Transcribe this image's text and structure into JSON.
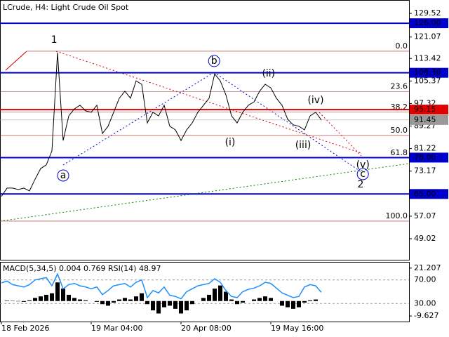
{
  "chart_data": [
    {
      "type": "line",
      "title": "LCrude, H4:  Light Crude Oil Spot",
      "categories": [
        "18 Feb 2026",
        null,
        null,
        null,
        null,
        null,
        null,
        null,
        null,
        null,
        null,
        null,
        null,
        null,
        null,
        null,
        "19 Mar 04:00",
        null,
        null,
        null,
        null,
        null,
        null,
        null,
        null,
        null,
        null,
        null,
        null,
        null,
        null,
        null,
        "20 Apr 08:00",
        null,
        null,
        null,
        null,
        null,
        null,
        null,
        null,
        null,
        null,
        null,
        null,
        null,
        null,
        null,
        "19 May 16:00",
        null,
        null,
        null,
        null,
        null,
        null,
        null,
        null,
        null
      ],
      "values": [
        64.1,
        67.1,
        67.1,
        66.6,
        67.1,
        66.1,
        70.3,
        74.1,
        75.4,
        80.4,
        115.5,
        84.1,
        92.9,
        95.4,
        96.7,
        94.7,
        94.2,
        96.7,
        86.6,
        89.2,
        94.2,
        99.2,
        101.7,
        99.2,
        105.4,
        104.2,
        90.4,
        94.2,
        92.9,
        96.7,
        89.2,
        87.9,
        84.1,
        87.9,
        90.4,
        94.2,
        96.7,
        99.2,
        107.9,
        105.4,
        100.4,
        92.9,
        90.4,
        94.2,
        96.7,
        97.9,
        101.7,
        104.2,
        102.9,
        99.2,
        96.7,
        91.7,
        89.7,
        89.2,
        87.9,
        92.9,
        94.2,
        91.45
      ],
      "color": "#000000",
      "ylim": [
        41.5,
        134.3
      ],
      "yticks": [
        129.52,
        121.07,
        113.42,
        105.37,
        97.32,
        89.27,
        81.22,
        73.17,
        57.07,
        49.02
      ],
      "levels": [
        {
          "value": 126,
          "label": "126.00",
          "color": "#0000cc"
        },
        {
          "value": 108.3,
          "label": "108.30",
          "color": "#0000cc"
        },
        {
          "value": 95.15,
          "label": "95.15",
          "color": "#e00000"
        },
        {
          "value": 78,
          "label": "78.00",
          "color": "#0000cc"
        },
        {
          "value": 65,
          "label": "65.00",
          "color": "#0000cc"
        }
      ],
      "last_price": 91.45,
      "fib_levels": [
        {
          "value": 116,
          "label": "0.0"
        },
        {
          "value": 101.6,
          "label": "23.6"
        },
        {
          "value": 94.2,
          "label": "38.2"
        },
        {
          "value": 85.9,
          "label": "50.0"
        },
        {
          "value": 77.9,
          "label": "61.8"
        },
        {
          "value": 55.3,
          "label": "100.0"
        }
      ],
      "annotations": [
        {
          "text": "1",
          "x": 9.4,
          "y": 120,
          "color": "#a52a2a",
          "circle": false
        },
        {
          "text": "a",
          "x": 11,
          "y": 71.6,
          "color": "#0000cc",
          "circle": true
        },
        {
          "text": "b",
          "x": 37.9,
          "y": 112.5,
          "color": "#0000cc",
          "circle": true
        },
        {
          "text": "(i)",
          "x": 40.75,
          "y": 83.4,
          "color": "#cc0000",
          "circle": false
        },
        {
          "text": "(ii)",
          "x": 47.6,
          "y": 108,
          "color": "#cc0000",
          "circle": false
        },
        {
          "text": "(iii)",
          "x": 53.75,
          "y": 82.4,
          "color": "#cc0000",
          "circle": false
        },
        {
          "text": "(iv)",
          "x": 56,
          "y": 98.4,
          "color": "#cc0000",
          "circle": false
        },
        {
          "text": "(v)",
          "x": 64.4,
          "y": 75.4,
          "color": "#cc0000",
          "circle": false
        },
        {
          "text": "c",
          "x": 64.4,
          "y": 72.1,
          "color": "#0000cc",
          "circle": true
        },
        {
          "text": "2",
          "x": 64,
          "y": 68.3,
          "color": "#a52a2a",
          "circle": false
        }
      ]
    },
    {
      "type": "macd_rsi",
      "title": "MACD(5,34,5) 0.004 0.769 RSI(14) 48.97",
      "ylim": [
        -13.2,
        25.2
      ],
      "yticks": [
        21.207,
        -9.627
      ],
      "y2lim": [
        -0.6,
        100.6
      ],
      "y2ticks": [
        {
          "value": 70,
          "label": "70.00"
        },
        {
          "value": 30,
          "label": "30.00"
        }
      ],
      "series": [
        {
          "name": "MACD",
          "color": "#000000",
          "values": [
            0,
            0.3,
            0.2,
            -0.2,
            -0.5,
            0.5,
            2,
            3,
            4,
            5,
            12,
            8,
            4,
            2,
            1,
            0.5,
            0,
            -0.5,
            -2,
            -3,
            -1,
            1,
            2,
            1,
            3,
            5,
            -2,
            -6,
            -8,
            -4,
            -3,
            -5,
            -8,
            -6,
            -2,
            0,
            2,
            4,
            8,
            10,
            6,
            1,
            -2,
            -1,
            0,
            1,
            2,
            3,
            2,
            0,
            -3,
            -4,
            -5,
            -4,
            -1,
            0.5,
            1,
            0.004
          ]
        },
        {
          "name": "RSI",
          "color": "#1e90ff",
          "axis": "y2",
          "values": [
            65,
            68,
            62,
            60,
            58,
            62,
            70,
            72,
            74,
            60,
            80,
            55,
            62,
            64,
            60,
            58,
            55,
            58,
            45,
            52,
            60,
            62,
            64,
            58,
            66,
            70,
            40,
            52,
            48,
            58,
            44,
            42,
            38,
            50,
            55,
            60,
            62,
            64,
            72,
            66,
            52,
            42,
            40,
            50,
            54,
            56,
            60,
            66,
            64,
            56,
            48,
            44,
            40,
            42,
            58,
            62,
            60,
            48.97
          ]
        }
      ]
    }
  ]
}
